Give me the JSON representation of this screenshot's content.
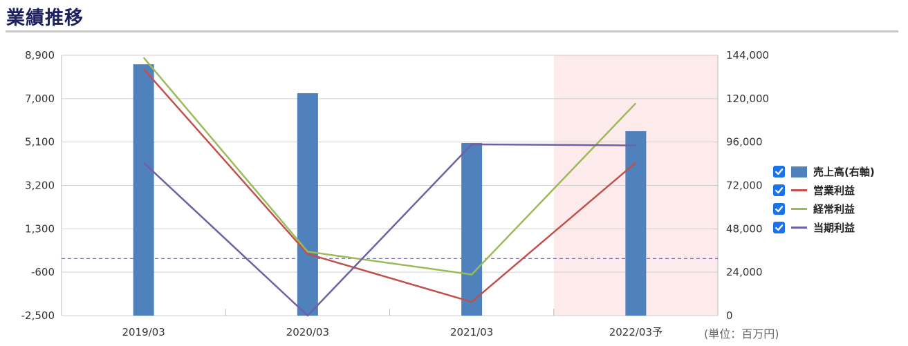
{
  "section": {
    "title": "業績推移"
  },
  "unit_note": "(単位：百万円)",
  "colors": {
    "bar": "#4f81bd",
    "op_profit": "#c0504d",
    "ord_profit": "#9bbb59",
    "net_profit": "#7060a3",
    "forecast_bg": "#fdeaea",
    "zero_line": "#7060a3"
  },
  "legend": [
    {
      "label": "売上高(右軸)",
      "kind": "bar",
      "color": "#4f81bd",
      "checked": true
    },
    {
      "label": "営業利益",
      "kind": "line",
      "color": "#c0504d",
      "checked": true
    },
    {
      "label": "経常利益",
      "kind": "line",
      "color": "#9bbb59",
      "checked": true
    },
    {
      "label": "当期利益",
      "kind": "line",
      "color": "#7060a3",
      "checked": true
    }
  ],
  "chart_data": {
    "type": "bar",
    "categories": [
      "2019/03",
      "2020/03",
      "2021/03",
      "2022/03予"
    ],
    "forecast_category": "2022/03予",
    "y_left": {
      "ticks": [
        "8,900",
        "7,000",
        "5,100",
        "3,200",
        "1,300",
        "-600",
        "-2,500"
      ],
      "range": [
        -2500,
        8900
      ]
    },
    "y_right": {
      "ticks": [
        "144,000",
        "120,000",
        "96,000",
        "72,000",
        "48,000",
        "24,000",
        "0"
      ],
      "range": [
        0,
        144000
      ]
    },
    "bars": {
      "name": "売上高(右軸)",
      "axis": "right",
      "values": [
        139000,
        123000,
        95500,
        102000
      ]
    },
    "series": [
      {
        "name": "営業利益",
        "axis": "left",
        "values": [
          8300,
          200,
          -1900,
          4200
        ]
      },
      {
        "name": "経常利益",
        "axis": "left",
        "values": [
          8800,
          300,
          -700,
          6800
        ]
      },
      {
        "name": "当期利益",
        "axis": "left",
        "values": [
          4200,
          -2500,
          5000,
          4950
        ]
      }
    ],
    "zero_line": true,
    "grid": true
  }
}
